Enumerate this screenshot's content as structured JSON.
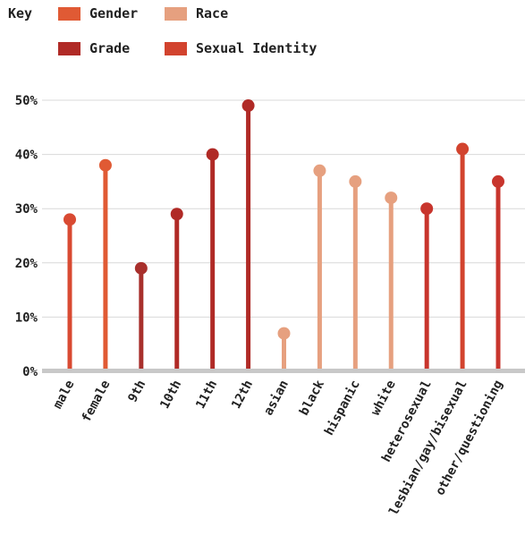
{
  "legend": {
    "title": "Key",
    "items": [
      {
        "label": "Gender",
        "color": "#E05A34"
      },
      {
        "label": "Race",
        "color": "#E6A07F"
      },
      {
        "label": "Grade",
        "color": "#B02A26"
      },
      {
        "label": "Sexual Identity",
        "color": "#D2432E"
      }
    ]
  },
  "chart_data": {
    "type": "lollipop",
    "title": "",
    "xlabel": "",
    "ylabel": "",
    "ylim": [
      0,
      50
    ],
    "yticks": [
      "0%",
      "10%",
      "20%",
      "30%",
      "40%",
      "50%"
    ],
    "grid": true,
    "legend_position": "top-left",
    "categories": [
      "male",
      "female",
      "9th",
      "10th",
      "11th",
      "12th",
      "asian",
      "black",
      "hispanic",
      "white",
      "heterosexual",
      "lesbian/gay/bisexual",
      "other/questioning"
    ],
    "groups": [
      "Gender",
      "Gender",
      "Grade",
      "Grade",
      "Grade",
      "Grade",
      "Race",
      "Race",
      "Race",
      "Race",
      "Sexual Identity",
      "Sexual Identity",
      "Sexual Identity"
    ],
    "values": [
      28,
      38,
      19,
      29,
      40,
      49,
      7,
      37,
      35,
      32,
      30,
      41,
      35
    ],
    "colors": [
      "#D94A32",
      "#E05A34",
      "#A8302C",
      "#B02A26",
      "#B02A26",
      "#B02A26",
      "#E6A07F",
      "#E6A07F",
      "#E6A07F",
      "#E6A07F",
      "#C8352D",
      "#D2432E",
      "#C8352D"
    ]
  }
}
